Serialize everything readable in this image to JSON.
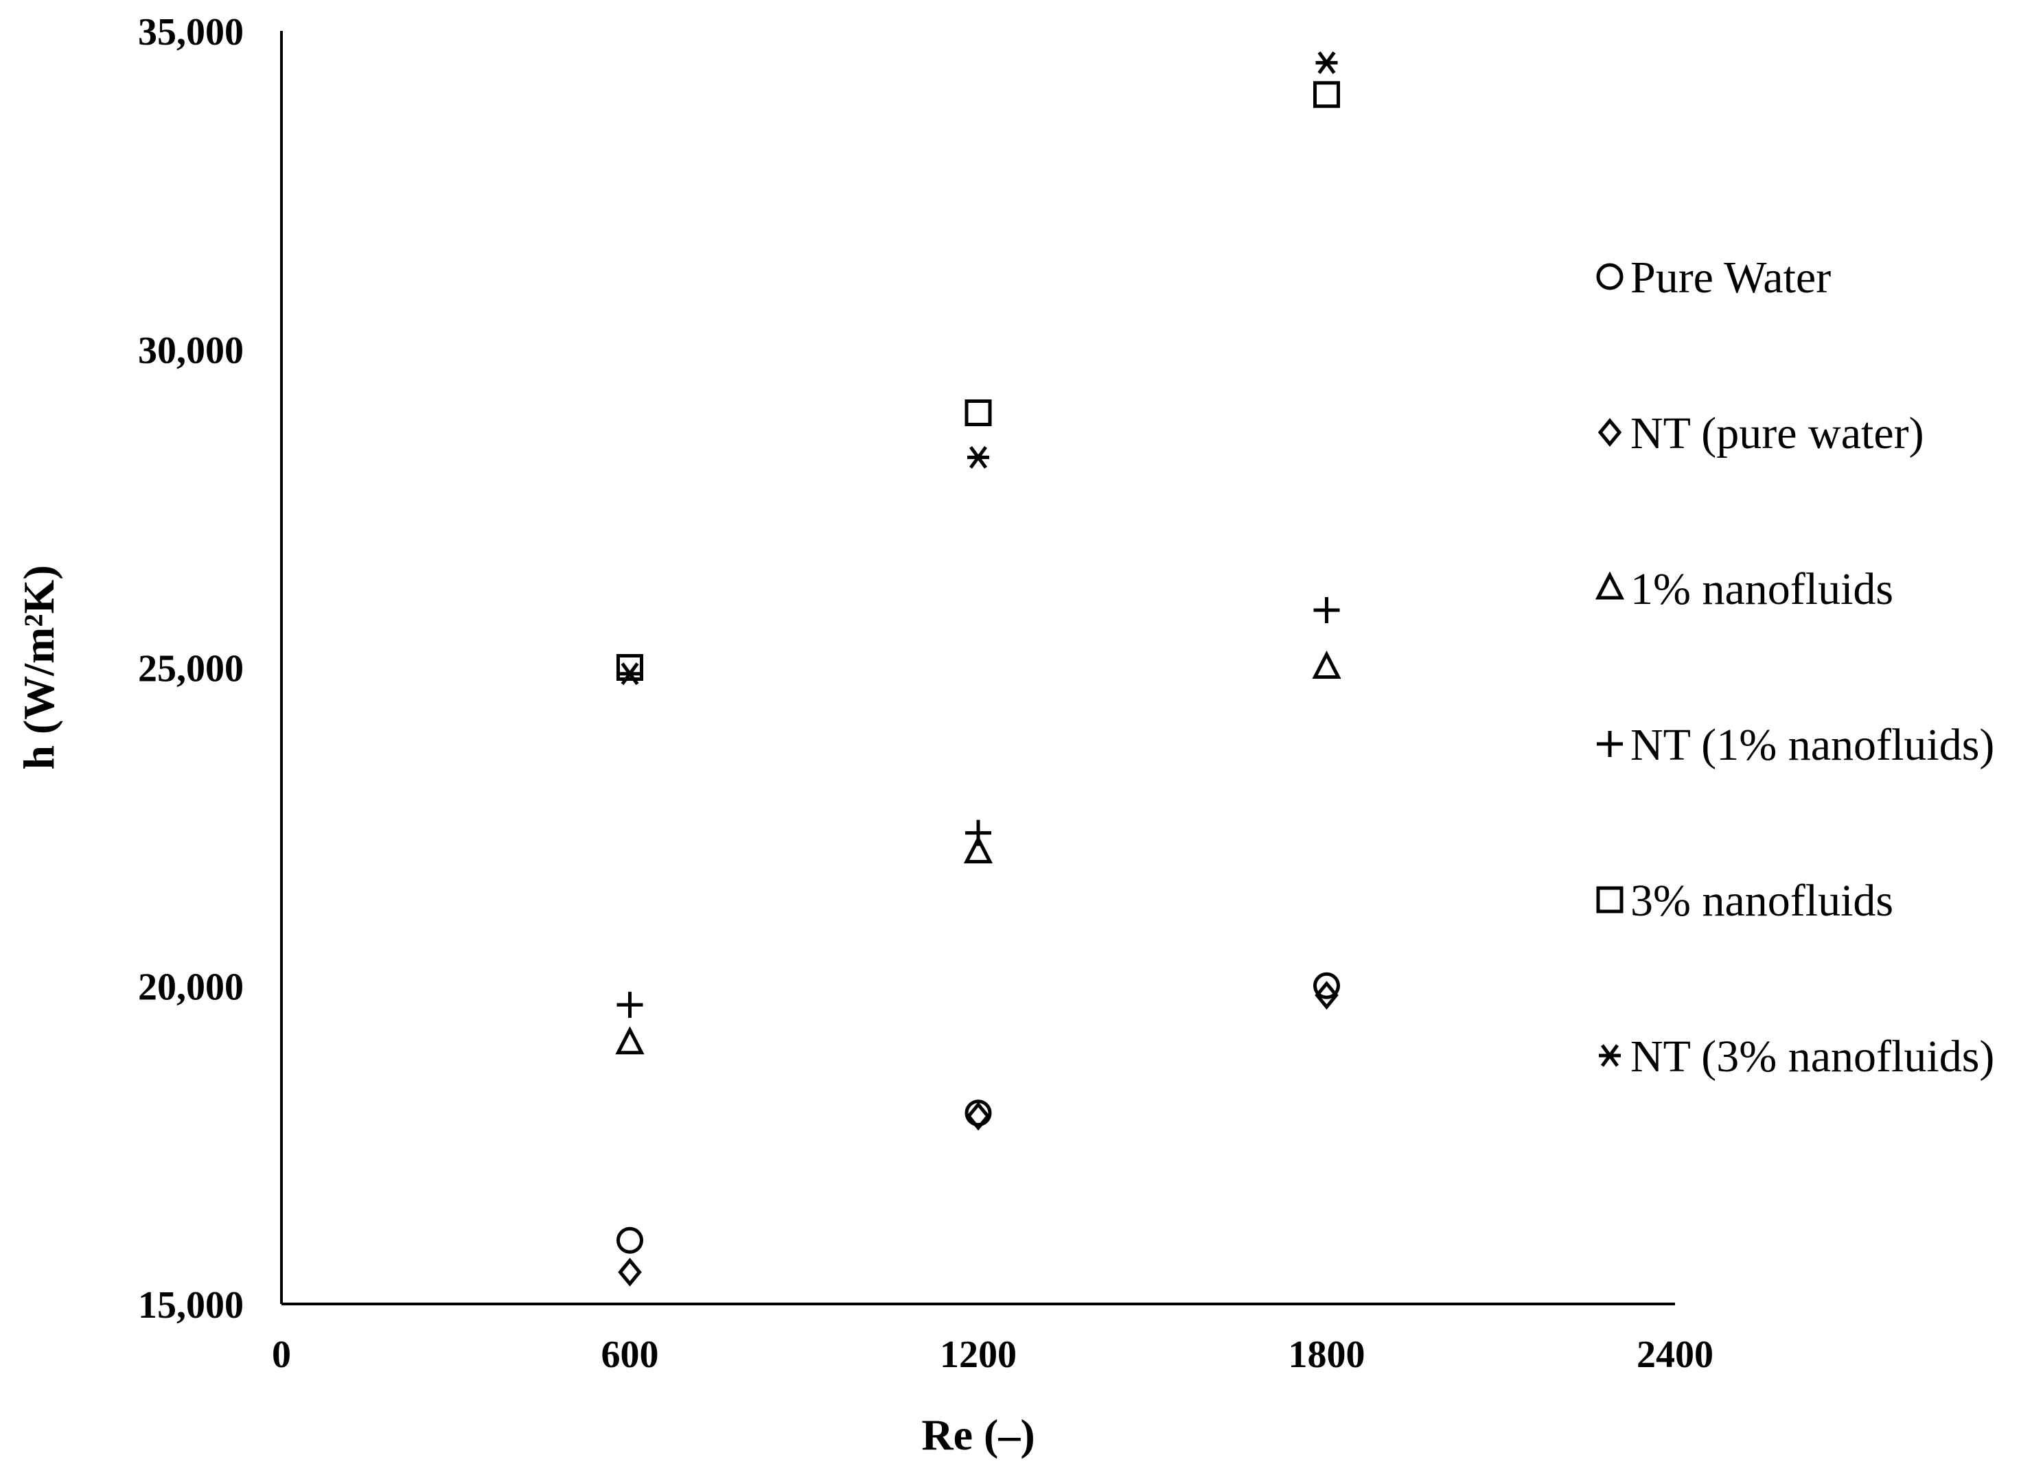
{
  "chart_data": {
    "type": "scatter",
    "title": "",
    "xlabel": "Re (–)",
    "ylabel": "h (W/m²K)",
    "xlim": [
      0,
      2400
    ],
    "ylim": [
      15000,
      35000
    ],
    "x_ticks": [
      0,
      600,
      1200,
      1800,
      2400
    ],
    "x_tick_labels": [
      "0",
      "600",
      "1200",
      "1800",
      "2400"
    ],
    "y_ticks": [
      15000,
      20000,
      25000,
      30000,
      35000
    ],
    "y_tick_labels": [
      "15,000",
      "20,000",
      "25,000",
      "30,000",
      "35,000"
    ],
    "grid": false,
    "legend_position": "right",
    "x": [
      600,
      1200,
      1800
    ],
    "series": [
      {
        "name": "Pure Water",
        "marker": "circle",
        "values": [
          16000,
          18000,
          20000
        ]
      },
      {
        "name": "NT (pure water)",
        "marker": "diamond",
        "values": [
          15500,
          17950,
          19850
        ]
      },
      {
        "name": "1% nanofluids",
        "marker": "triangle",
        "values": [
          19100,
          22100,
          25000
        ]
      },
      {
        "name": "NT (1% nanofluids)",
        "marker": "plus",
        "values": [
          19700,
          22400,
          25900
        ]
      },
      {
        "name": "3% nanofluids",
        "marker": "square",
        "values": [
          25000,
          29000,
          34000
        ]
      },
      {
        "name": "NT (3% nanofluids)",
        "marker": "asterisk",
        "values": [
          24900,
          28300,
          34500
        ]
      }
    ]
  }
}
